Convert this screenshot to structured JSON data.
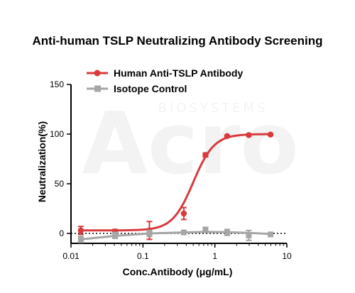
{
  "chart_data": {
    "type": "line",
    "title": "Anti-human TSLP Neutralizing Antibody Screening",
    "xlabel": "Conc.Antibody (μg/mL)",
    "ylabel": "Neutralization(%)",
    "x_scale": "log",
    "xlim": [
      0.01,
      10
    ],
    "ylim": [
      -10,
      150
    ],
    "x_ticks": [
      0.01,
      0.1,
      1,
      10
    ],
    "x_tick_labels": [
      "0.01",
      "0.1",
      "1",
      "10"
    ],
    "y_ticks": [
      0,
      50,
      100,
      150
    ],
    "y_tick_labels": [
      "0",
      "50",
      "100",
      "150"
    ],
    "reference_line": 0,
    "legend_position": "top-left",
    "series": [
      {
        "name": "Human Anti-TSLP Antibody",
        "color": "#d93a3e",
        "marker": "circle",
        "x": [
          0.0137,
          0.041,
          0.123,
          0.37,
          0.74,
          1.48,
          2.96,
          5.93
        ],
        "y": [
          3,
          2,
          3,
          20,
          79,
          98,
          99,
          99.5
        ],
        "error": [
          4,
          2,
          9,
          6,
          2,
          1,
          1,
          1
        ],
        "fit_curve": {
          "bottom": 3,
          "top": 100,
          "ec50": 0.5,
          "hill": 3
        }
      },
      {
        "name": "Isotope Control",
        "color": "#a6a6a6",
        "marker": "square",
        "x": [
          0.0137,
          0.041,
          0.123,
          0.37,
          0.74,
          1.48,
          2.96,
          5.93
        ],
        "y": [
          -6,
          -2,
          0,
          1,
          4,
          1,
          -2,
          -1
        ],
        "error": [
          3,
          3,
          3,
          1,
          2,
          3,
          5,
          2
        ],
        "fit_curve": {
          "points": [
            [
              0.0137,
              -6
            ],
            [
              0.041,
              -2.5
            ],
            [
              0.123,
              0
            ],
            [
              0.37,
              1
            ],
            [
              0.74,
              1.5
            ],
            [
              1.48,
              1.2
            ],
            [
              2.96,
              0.5
            ],
            [
              5.93,
              -0.5
            ]
          ]
        }
      }
    ]
  },
  "watermark": {
    "brand": "Acro",
    "sub": "BIOSYSTEMS"
  }
}
